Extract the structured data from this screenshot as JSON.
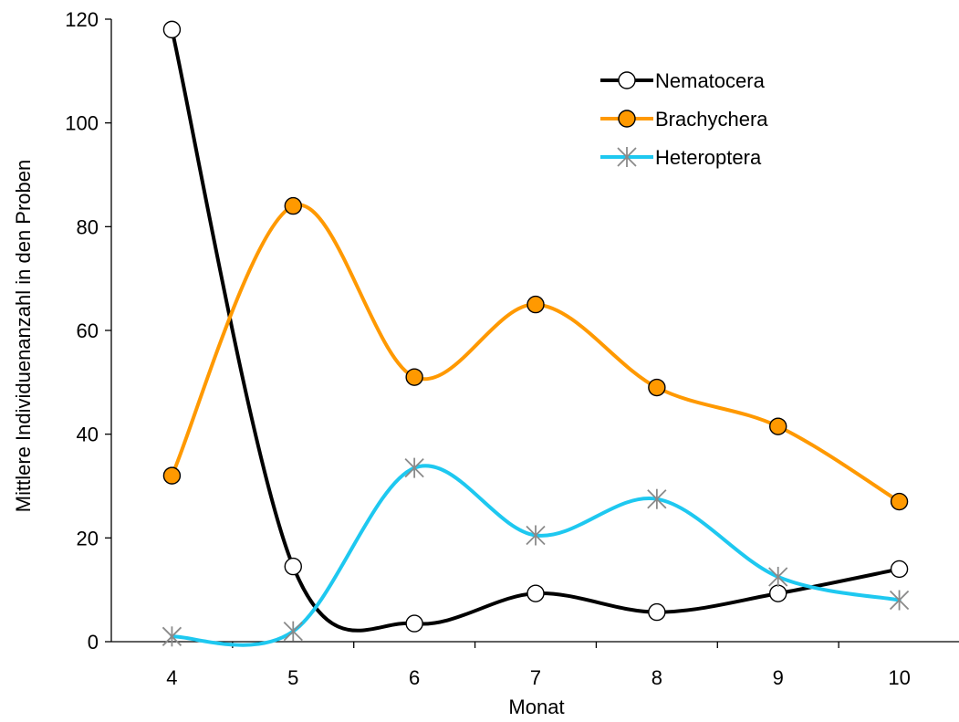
{
  "chart_data": {
    "type": "line",
    "xlabel": "Monat",
    "ylabel": "Mittlere Individuenanzahl in den Proben",
    "x": [
      4,
      5,
      6,
      7,
      8,
      9,
      10
    ],
    "xlim": [
      3.5,
      10.5
    ],
    "ylim": [
      0,
      120
    ],
    "yticks": [
      0,
      20,
      40,
      60,
      80,
      100,
      120
    ],
    "grid": false,
    "smooth": true,
    "legend_position": "top-right",
    "series": [
      {
        "name": "Nematocera",
        "values": [
          118,
          14.5,
          3.5,
          9.3,
          5.7,
          9.3,
          14
        ],
        "color": "#000000",
        "marker": "open-circle"
      },
      {
        "name": "Brachychera",
        "values": [
          32,
          84,
          51,
          65,
          49,
          41.5,
          27
        ],
        "color": "#FF9900",
        "marker": "filled-circle"
      },
      {
        "name": "Heteroptera",
        "values": [
          1,
          2,
          33.5,
          20.5,
          27.5,
          12.5,
          8
        ],
        "color": "#1EC8F0",
        "marker": "asterisk"
      }
    ]
  }
}
